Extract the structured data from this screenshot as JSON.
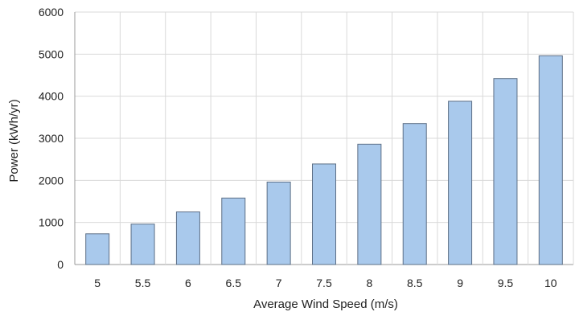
{
  "chart_data": {
    "type": "bar",
    "categories": [
      "5",
      "5.5",
      "6",
      "6.5",
      "7",
      "7.5",
      "8",
      "8.5",
      "9",
      "9.5",
      "10"
    ],
    "values": [
      730,
      960,
      1250,
      1580,
      1960,
      2390,
      2860,
      3350,
      3880,
      4420,
      4960
    ],
    "title": "",
    "xlabel": "Average Wind Speed (m/s)",
    "ylabel": "Power (kWh/yr)",
    "ylim": [
      0,
      6000
    ],
    "yticks": [
      "0",
      "1000",
      "2000",
      "3000",
      "4000",
      "5000",
      "6000"
    ],
    "grid": true,
    "legend": "none",
    "colors": {
      "bar_fill": "#a9c9ec",
      "bar_stroke": "#5d6f86",
      "grid": "#d9d9d9",
      "axis": "#999999"
    }
  }
}
